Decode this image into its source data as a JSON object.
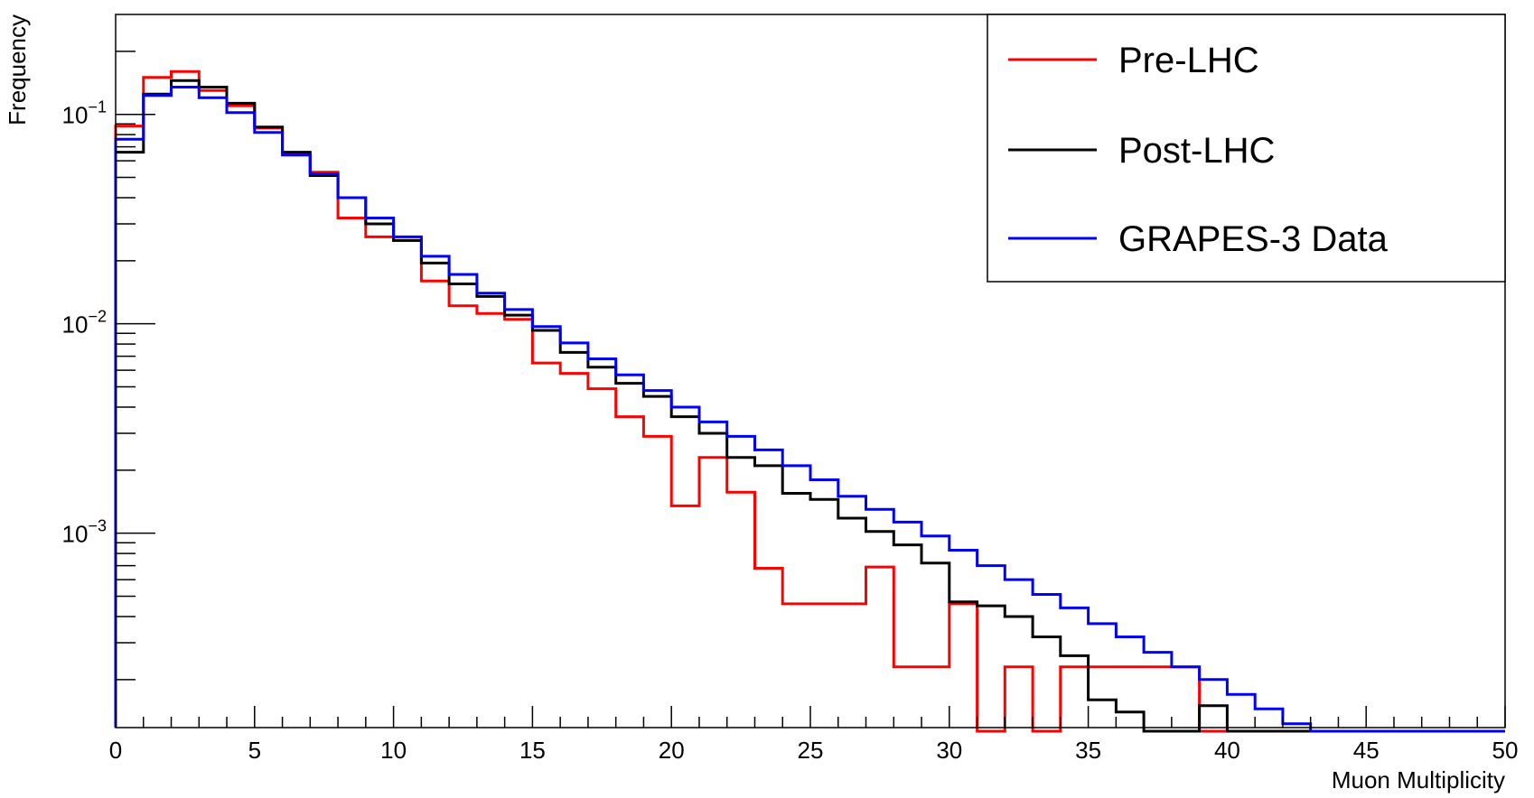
{
  "chart_data": {
    "type": "line",
    "style": "step-histogram",
    "xlabel": "Muon Multiplicity",
    "ylabel": "Frequency",
    "xlim": [
      0,
      50
    ],
    "ylim": [
      0.000118,
      0.3
    ],
    "yscale": "log",
    "x_ticks": [
      "0",
      "5",
      "10",
      "15",
      "20",
      "25",
      "30",
      "35",
      "40",
      "45",
      "50"
    ],
    "y_ticks": [
      {
        "base": "10",
        "exp": "−1"
      },
      {
        "base": "10",
        "exp": "−2"
      },
      {
        "base": "10",
        "exp": "−3"
      }
    ],
    "grid": false,
    "legend_position": "top-right",
    "bin_edges": [
      0,
      1,
      2,
      3,
      4,
      5,
      6,
      7,
      8,
      9,
      10,
      11,
      12,
      13,
      14,
      15,
      16,
      17,
      18,
      19,
      20,
      21,
      22,
      23,
      24,
      25,
      26,
      27,
      28,
      29,
      30,
      31,
      32,
      33,
      34,
      35,
      36,
      37,
      38,
      39,
      40,
      41,
      42,
      43,
      44,
      45,
      46,
      47,
      48,
      49,
      50
    ],
    "series": [
      {
        "name": "Pre-LHC",
        "color": "#ff0000",
        "values": [
          0.088,
          0.15,
          0.16,
          0.13,
          0.11,
          0.086,
          0.065,
          0.053,
          0.032,
          0.026,
          0.025,
          0.016,
          0.0122,
          0.0112,
          0.0105,
          0.0065,
          0.0058,
          0.0049,
          0.0036,
          0.0029,
          0.00135,
          0.0023,
          0.00157,
          0.00068,
          0.00046,
          0.00046,
          0.00046,
          0.00069,
          0.00023,
          0.00023,
          0.00046,
          0.0001,
          0.00023,
          0.0001,
          0.00023,
          0.00023,
          0.00023,
          0.00023,
          0.00023,
          0.0001,
          0.0001,
          0.0001,
          0.0001,
          0.0001,
          0.0001,
          0.0001,
          0.0001,
          0.0001,
          0.0001,
          0.0001
        ]
      },
      {
        "name": "Post-LHC",
        "color": "#000000",
        "values": [
          0.066,
          0.125,
          0.145,
          0.135,
          0.113,
          0.087,
          0.066,
          0.051,
          0.04,
          0.03,
          0.025,
          0.0195,
          0.0155,
          0.0135,
          0.011,
          0.0093,
          0.0073,
          0.0062,
          0.0052,
          0.0045,
          0.0036,
          0.003,
          0.0023,
          0.0021,
          0.00155,
          0.00145,
          0.00118,
          0.00102,
          0.00088,
          0.00072,
          0.00047,
          0.00045,
          0.0004,
          0.00032,
          0.00026,
          0.00016,
          0.00014,
          0.0001,
          0.0001,
          0.00015,
          0.0001,
          0.0001,
          0.0001,
          0.0001,
          0.0001,
          0.0001,
          0.0001,
          0.0001,
          0.0001,
          0.0001
        ]
      },
      {
        "name": "GRAPES-3 Data",
        "color": "#0000ff",
        "values": [
          0.076,
          0.123,
          0.135,
          0.12,
          0.102,
          0.082,
          0.064,
          0.052,
          0.04,
          0.032,
          0.026,
          0.021,
          0.0172,
          0.014,
          0.0117,
          0.0097,
          0.0081,
          0.0068,
          0.0057,
          0.0048,
          0.004,
          0.0034,
          0.0029,
          0.0025,
          0.0021,
          0.0018,
          0.0015,
          0.0013,
          0.00113,
          0.00097,
          0.00083,
          0.0007,
          0.0006,
          0.00051,
          0.00044,
          0.00037,
          0.00032,
          0.00027,
          0.00023,
          0.0002,
          0.00017,
          0.000145,
          0.000123,
          0.0001,
          0.0001,
          0.0001,
          0.0001,
          0.0001,
          0.0001,
          0.0001
        ]
      }
    ]
  }
}
